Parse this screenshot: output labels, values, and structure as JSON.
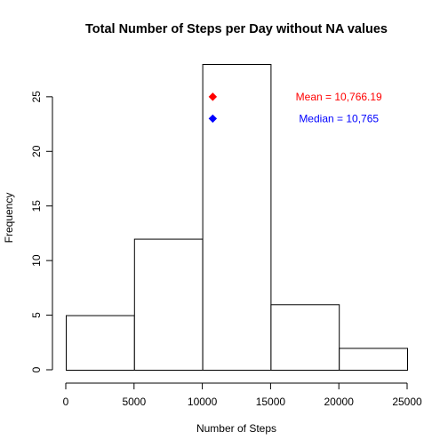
{
  "chart_data": {
    "type": "bar",
    "title": "Total Number of Steps per Day without NA values",
    "xlabel": "Number of Steps",
    "ylabel": "Frequency",
    "bins": [
      {
        "from": 0,
        "to": 5000,
        "count": 5
      },
      {
        "from": 5000,
        "to": 10000,
        "count": 12
      },
      {
        "from": 10000,
        "to": 15000,
        "count": 28
      },
      {
        "from": 15000,
        "to": 20000,
        "count": 6
      },
      {
        "from": 20000,
        "to": 25000,
        "count": 2
      }
    ],
    "xlim": [
      0,
      25000
    ],
    "ylim": [
      0,
      28
    ],
    "x_ticks": [
      0,
      5000,
      10000,
      15000,
      20000,
      25000
    ],
    "y_ticks": [
      0,
      5,
      10,
      15,
      20,
      25
    ],
    "bar_fill": "#ffffff",
    "bar_stroke": "#000000",
    "grid": false,
    "markers": [
      {
        "x": 10766.19,
        "y": 25,
        "color": "#ff0000",
        "shape": "diamond"
      },
      {
        "x": 10765,
        "y": 23,
        "color": "#0000ff",
        "shape": "diamond"
      }
    ],
    "annotations": [
      {
        "text": "Mean = 10,766.19",
        "x": 20000,
        "y": 25,
        "color": "#ff0000"
      },
      {
        "text": "Median = 10,765",
        "x": 20000,
        "y": 23,
        "color": "#0000ff"
      }
    ]
  }
}
